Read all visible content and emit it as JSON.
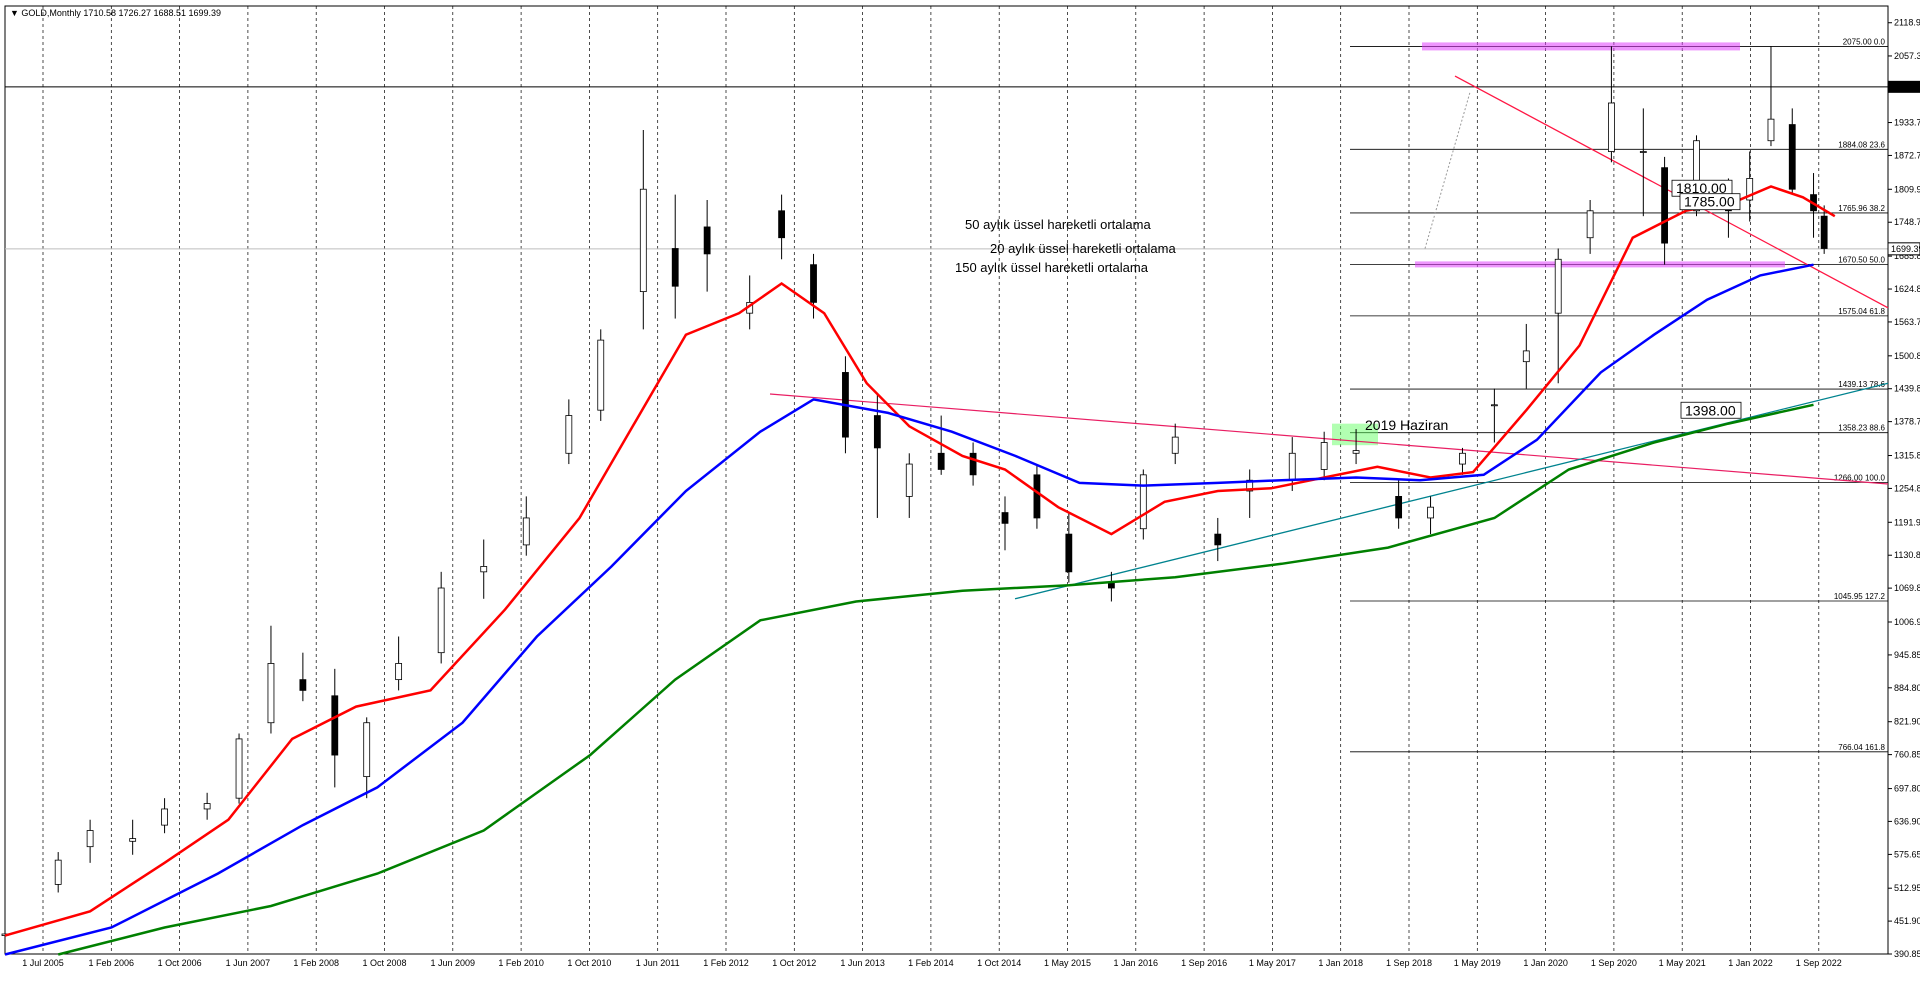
{
  "header": {
    "symbol": "GOLD,Monthly",
    "ohlc": "1710.58 1726.27 1688.51 1699.39"
  },
  "chart_data": {
    "type": "candlestick",
    "symbol": "GOLD",
    "timeframe": "Monthly",
    "last_price": 1699.39,
    "ylim": [
      390.85,
      2150
    ],
    "y_ticks": [
      "2118.95",
      "2057.30",
      "1996.15",
      "1933.75",
      "1872.70",
      "1809.90",
      "1748.75",
      "1685.85",
      "1624.80",
      "1563.75",
      "1500.85",
      "1439.80",
      "1378.75",
      "1315.85",
      "1254.80",
      "1191.95",
      "1130.85",
      "1069.80",
      "1006.95",
      "945.85",
      "884.80",
      "821.90",
      "760.85",
      "697.80",
      "636.90",
      "575.65",
      "512.95",
      "451.90",
      "390.85"
    ],
    "x_ticks": [
      "1 Jul 2005",
      "1 Feb 2006",
      "1 Oct 2006",
      "1 Jun 2007",
      "1 Feb 2008",
      "1 Oct 2008",
      "1 Jun 2009",
      "1 Feb 2010",
      "1 Oct 2010",
      "1 Jun 2011",
      "1 Feb 2012",
      "1 Oct 2012",
      "1 Jun 2013",
      "1 Feb 2014",
      "1 Oct 2014",
      "1 May 2015",
      "1 Jan 2016",
      "1 Sep 2016",
      "1 May 2017",
      "1 Jan 2018",
      "1 Sep 2018",
      "1 May 2019",
      "1 Jan 2020",
      "1 Sep 2020",
      "1 May 2021",
      "1 Jan 2022",
      "1 Sep 2022"
    ],
    "horizontal_levels": [
      {
        "label": "2000.00",
        "value": 2000
      },
      {
        "label": "1699.39",
        "value": 1699.39
      }
    ],
    "fibonacci_levels": [
      {
        "label": "2075.00 0.0",
        "value": 2075.0
      },
      {
        "label": "1884.08 23.6",
        "value": 1884.08
      },
      {
        "label": "1765.96 38.2",
        "value": 1765.96
      },
      {
        "label": "1670.50 50.0",
        "value": 1670.5
      },
      {
        "label": "1575.04 61.8",
        "value": 1575.04
      },
      {
        "label": "1439.13 78.6",
        "value": 1439.13
      },
      {
        "label": "1358.23 88.6",
        "value": 1358.23
      },
      {
        "label": "1266.00 100.0",
        "value": 1266.0
      },
      {
        "label": "1045.95 127.2",
        "value": 1045.95
      },
      {
        "label": "766.04 161.8",
        "value": 766.04
      }
    ],
    "annotations": [
      {
        "text": "50 aylık üssel hareketli ortalama",
        "color": "#0000ff"
      },
      {
        "text": "20 aylık üssel hareketli ortalama",
        "color": "#ff0000"
      },
      {
        "text": "150 aylık üssel hareketli ortalama",
        "color": "#008000"
      },
      {
        "text": "2019 Haziran",
        "color": "#9c27b0"
      },
      {
        "text": "1810.00",
        "value": 1810
      },
      {
        "text": "1785.00",
        "value": 1785
      },
      {
        "text": "1398.00",
        "value": 1398
      }
    ],
    "series": [
      {
        "name": "20 aylık üssel hareketli ortalama",
        "color": "#ff0000",
        "values": [
          [
            2005.5,
            425
          ],
          [
            2006.3,
            470
          ],
          [
            2007.0,
            560
          ],
          [
            2007.6,
            640
          ],
          [
            2008.2,
            790
          ],
          [
            2008.8,
            850
          ],
          [
            2009.5,
            880
          ],
          [
            2010.2,
            1030
          ],
          [
            2010.9,
            1200
          ],
          [
            2011.4,
            1370
          ],
          [
            2011.9,
            1540
          ],
          [
            2012.4,
            1580
          ],
          [
            2012.8,
            1635
          ],
          [
            2013.2,
            1580
          ],
          [
            2013.6,
            1450
          ],
          [
            2014.0,
            1370
          ],
          [
            2014.5,
            1315
          ],
          [
            2014.9,
            1290
          ],
          [
            2015.4,
            1220
          ],
          [
            2015.9,
            1170
          ],
          [
            2016.4,
            1230
          ],
          [
            2016.9,
            1250
          ],
          [
            2017.4,
            1255
          ],
          [
            2017.9,
            1275
          ],
          [
            2018.4,
            1295
          ],
          [
            2018.9,
            1275
          ],
          [
            2019.3,
            1285
          ],
          [
            2019.8,
            1400
          ],
          [
            2020.3,
            1520
          ],
          [
            2020.8,
            1720
          ],
          [
            2021.3,
            1770
          ],
          [
            2021.8,
            1790
          ],
          [
            2022.1,
            1815
          ],
          [
            2022.4,
            1795
          ],
          [
            2022.7,
            1760
          ]
        ]
      },
      {
        "name": "50 aylık üssel hareketli ortalama",
        "color": "#0000ff",
        "values": [
          [
            2005.5,
            390
          ],
          [
            2006.5,
            440
          ],
          [
            2007.5,
            540
          ],
          [
            2008.3,
            630
          ],
          [
            2009.0,
            700
          ],
          [
            2009.8,
            820
          ],
          [
            2010.5,
            980
          ],
          [
            2011.2,
            1110
          ],
          [
            2011.9,
            1250
          ],
          [
            2012.6,
            1360
          ],
          [
            2013.1,
            1420
          ],
          [
            2013.8,
            1395
          ],
          [
            2014.4,
            1360
          ],
          [
            2015.0,
            1315
          ],
          [
            2015.6,
            1265
          ],
          [
            2016.2,
            1260
          ],
          [
            2016.9,
            1265
          ],
          [
            2017.5,
            1270
          ],
          [
            2018.2,
            1275
          ],
          [
            2018.8,
            1270
          ],
          [
            2019.4,
            1280
          ],
          [
            2019.9,
            1345
          ],
          [
            2020.5,
            1470
          ],
          [
            2021.0,
            1540
          ],
          [
            2021.5,
            1605
          ],
          [
            2022.0,
            1650
          ],
          [
            2022.5,
            1670
          ]
        ]
      },
      {
        "name": "150 aylık üssel hareketli ortalama",
        "color": "#008000",
        "values": [
          [
            2006.0,
            390
          ],
          [
            2007.0,
            440
          ],
          [
            2008.0,
            480
          ],
          [
            2009.0,
            540
          ],
          [
            2010.0,
            620
          ],
          [
            2011.0,
            760
          ],
          [
            2011.8,
            900
          ],
          [
            2012.6,
            1010
          ],
          [
            2013.5,
            1045
          ],
          [
            2014.5,
            1065
          ],
          [
            2015.5,
            1075
          ],
          [
            2016.5,
            1090
          ],
          [
            2017.5,
            1115
          ],
          [
            2018.5,
            1145
          ],
          [
            2019.5,
            1200
          ],
          [
            2020.2,
            1290
          ],
          [
            2021.0,
            1340
          ],
          [
            2021.7,
            1375
          ],
          [
            2022.5,
            1410
          ]
        ]
      }
    ],
    "candles": [
      [
        2005.5,
        425,
        430,
        418,
        428
      ],
      [
        2006.0,
        520,
        580,
        505,
        565
      ],
      [
        2006.3,
        590,
        640,
        560,
        620
      ],
      [
        2006.7,
        600,
        640,
        575,
        605
      ],
      [
        2007.0,
        630,
        680,
        615,
        660
      ],
      [
        2007.4,
        660,
        690,
        640,
        670
      ],
      [
        2007.7,
        680,
        800,
        670,
        790
      ],
      [
        2008.0,
        820,
        1000,
        800,
        930
      ],
      [
        2008.3,
        900,
        950,
        860,
        880
      ],
      [
        2008.6,
        870,
        920,
        700,
        760
      ],
      [
        2008.9,
        720,
        830,
        680,
        820
      ],
      [
        2009.2,
        900,
        980,
        880,
        930
      ],
      [
        2009.6,
        950,
        1100,
        930,
        1070
      ],
      [
        2010.0,
        1100,
        1160,
        1050,
        1110
      ],
      [
        2010.4,
        1150,
        1240,
        1130,
        1200
      ],
      [
        2010.8,
        1320,
        1420,
        1300,
        1390
      ],
      [
        2011.1,
        1400,
        1550,
        1380,
        1530
      ],
      [
        2011.5,
        1620,
        1920,
        1550,
        1810
      ],
      [
        2011.8,
        1700,
        1800,
        1570,
        1630
      ],
      [
        2012.1,
        1740,
        1790,
        1620,
        1690
      ],
      [
        2012.5,
        1580,
        1650,
        1550,
        1600
      ],
      [
        2012.8,
        1770,
        1800,
        1680,
        1720
      ],
      [
        2013.1,
        1670,
        1690,
        1570,
        1600
      ],
      [
        2013.4,
        1470,
        1500,
        1320,
        1350
      ],
      [
        2013.7,
        1390,
        1430,
        1200,
        1330
      ],
      [
        2014.0,
        1240,
        1320,
        1200,
        1300
      ],
      [
        2014.3,
        1320,
        1390,
        1280,
        1290
      ],
      [
        2014.6,
        1320,
        1340,
        1260,
        1280
      ],
      [
        2014.9,
        1210,
        1240,
        1140,
        1190
      ],
      [
        2015.2,
        1280,
        1300,
        1180,
        1200
      ],
      [
        2015.5,
        1170,
        1210,
        1080,
        1100
      ],
      [
        2015.9,
        1080,
        1100,
        1045,
        1070
      ],
      [
        2016.2,
        1180,
        1290,
        1160,
        1280
      ],
      [
        2016.5,
        1320,
        1375,
        1300,
        1350
      ],
      [
        2016.9,
        1170,
        1200,
        1120,
        1150
      ],
      [
        2017.2,
        1250,
        1290,
        1200,
        1270
      ],
      [
        2017.6,
        1270,
        1350,
        1250,
        1320
      ],
      [
        2017.9,
        1290,
        1360,
        1270,
        1340
      ],
      [
        2018.2,
        1320,
        1365,
        1300,
        1325
      ],
      [
        2018.6,
        1240,
        1270,
        1180,
        1200
      ],
      [
        2018.9,
        1200,
        1240,
        1170,
        1220
      ],
      [
        2019.2,
        1300,
        1330,
        1280,
        1320
      ],
      [
        2019.5,
        1410,
        1440,
        1340,
        1410
      ],
      [
        2019.8,
        1490,
        1560,
        1440,
        1510
      ],
      [
        2020.1,
        1580,
        1700,
        1450,
        1680
      ],
      [
        2020.4,
        1720,
        1790,
        1690,
        1770
      ],
      [
        2020.6,
        1880,
        2075,
        1860,
        1970
      ],
      [
        2020.9,
        1880,
        1960,
        1760,
        1880
      ],
      [
        2021.1,
        1850,
        1870,
        1670,
        1710
      ],
      [
        2021.4,
        1770,
        1910,
        1760,
        1900
      ],
      [
        2021.7,
        1780,
        1830,
        1720,
        1770
      ],
      [
        2021.9,
        1790,
        1880,
        1750,
        1830
      ],
      [
        2022.1,
        1900,
        2075,
        1890,
        1940
      ],
      [
        2022.3,
        1930,
        1960,
        1800,
        1810
      ],
      [
        2022.5,
        1800,
        1840,
        1720,
        1770
      ],
      [
        2022.6,
        1760,
        1780,
        1690,
        1700
      ]
    ]
  }
}
